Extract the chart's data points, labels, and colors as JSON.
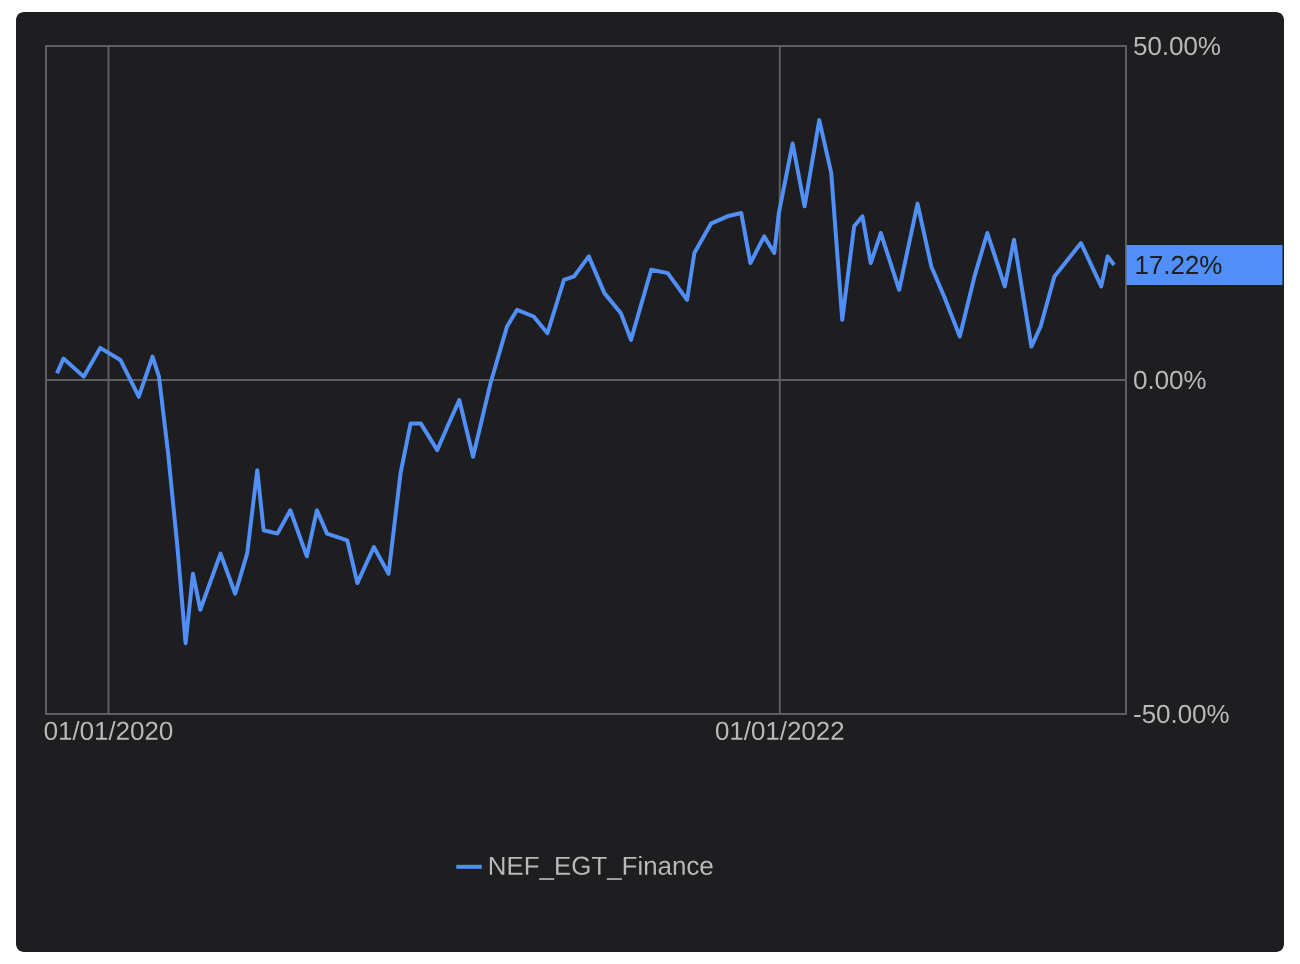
{
  "chart_data": {
    "type": "line",
    "x": [
      "2019-11-06",
      "2019-11-13",
      "2019-12-05",
      "2019-12-23",
      "2020-01-14",
      "2020-02-03",
      "2020-02-18",
      "2020-02-25",
      "2020-03-06",
      "2020-03-16",
      "2020-03-25",
      "2020-04-02",
      "2020-04-10",
      "2020-05-02",
      "2020-05-18",
      "2020-05-31",
      "2020-06-11",
      "2020-06-18",
      "2020-07-03",
      "2020-07-17",
      "2020-08-04",
      "2020-08-15",
      "2020-08-26",
      "2020-09-17",
      "2020-09-28",
      "2020-10-16",
      "2020-11-01",
      "2020-11-14",
      "2020-11-25",
      "2020-12-06",
      "2020-12-24",
      "2021-01-04",
      "2021-01-17",
      "2021-02-01",
      "2021-02-20",
      "2021-03-10",
      "2021-03-21",
      "2021-04-08",
      "2021-04-23",
      "2021-05-11",
      "2021-05-22",
      "2021-06-07",
      "2021-06-24",
      "2021-07-12",
      "2021-07-23",
      "2021-08-14",
      "2021-09-01",
      "2021-09-22",
      "2021-09-30",
      "2021-10-18",
      "2021-11-05",
      "2021-11-20",
      "2021-11-30",
      "2021-12-15",
      "2021-12-26",
      "2021-12-31",
      "2022-01-15",
      "2022-01-28",
      "2022-02-13",
      "2022-02-26",
      "2022-03-10",
      "2022-03-23",
      "2022-04-01",
      "2022-04-10",
      "2022-04-21",
      "2022-05-11",
      "2022-05-31",
      "2022-06-15",
      "2022-06-29",
      "2022-07-16",
      "2022-08-01",
      "2022-08-15",
      "2022-09-03",
      "2022-09-13",
      "2022-10-02",
      "2022-10-12",
      "2022-10-27",
      "2022-11-25",
      "2022-12-17",
      "2022-12-24",
      "2022-12-31"
    ],
    "series": [
      {
        "name": "NEF_EGT_Finance",
        "color": "#4f8ff7",
        "values": [
          1.0,
          3.2,
          0.5,
          4.8,
          3.0,
          -2.5,
          3.5,
          0.5,
          -11,
          -24.9,
          -39.4,
          -29,
          -34.4,
          -26,
          -32,
          -26,
          -13.5,
          -22.5,
          -23,
          -19.5,
          -26.4,
          -19.5,
          -23,
          -24,
          -30.4,
          -25,
          -29,
          -14,
          -6.5,
          -6.5,
          -10.5,
          -7,
          -3,
          -11.5,
          -0.5,
          8,
          10.5,
          9.5,
          7,
          15,
          15.5,
          18.5,
          13,
          10,
          6,
          16.5,
          16,
          12,
          19,
          23.4,
          24.5,
          25,
          17.5,
          21.5,
          19,
          25,
          35.4,
          26,
          38.9,
          31,
          9,
          23,
          24.5,
          17.5,
          22,
          13.5,
          26.4,
          17,
          12.5,
          6.5,
          15.5,
          22,
          14,
          21,
          5,
          8,
          15.5,
          20.5,
          14,
          18.5,
          17.22
        ]
      }
    ],
    "xlim": [
      "2019-10-25",
      "2023-01-13"
    ],
    "xticks": [
      {
        "value": "2020-01-01",
        "label": "01/01/2020"
      },
      {
        "value": "2022-01-01",
        "label": "01/01/2022"
      }
    ],
    "ylim": [
      -50,
      50
    ],
    "yticks": [
      {
        "value": -50,
        "label": "-50.00%"
      },
      {
        "value": 0,
        "label": "0.00%"
      },
      {
        "value": 50,
        "label": "50.00%"
      }
    ],
    "annotations": [
      {
        "text": "17.22%",
        "x": "2022-12-31",
        "y": 17.22
      }
    ],
    "grid": true,
    "legend": "bottom"
  }
}
